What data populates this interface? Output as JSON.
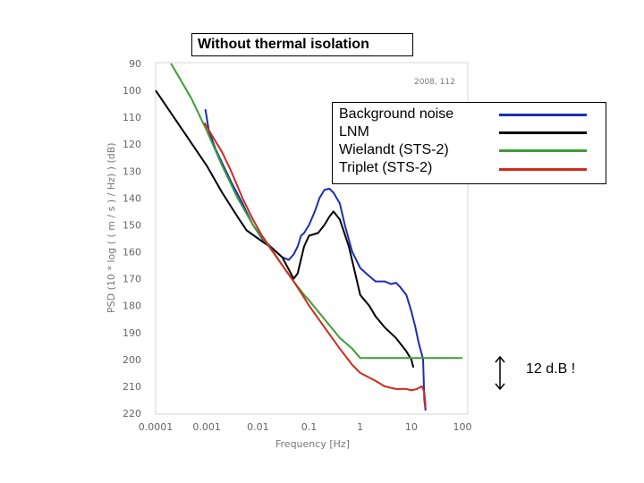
{
  "title": "Without thermal isolation",
  "annotation": "12 d.B !",
  "chart_data": {
    "type": "line",
    "stamp": "2008, 112",
    "xlabel": "Frequency   [Hz]",
    "ylabel": "PSD (10 * log ( ( m / s ) / Hz) )  (dB)",
    "xscale": "log",
    "xlim": [
      0.0001,
      100
    ],
    "ylim": [
      90,
      220
    ],
    "y_inverted": true,
    "x_ticks": [
      "0.0001",
      "0.001",
      "0.01",
      "0.1",
      "1",
      "10",
      "100"
    ],
    "y_ticks": [
      "90",
      "100",
      "110",
      "120",
      "130",
      "140",
      "150",
      "160",
      "170",
      "180",
      "190",
      "200",
      "210",
      "220"
    ],
    "legend_position": "top-right",
    "series": [
      {
        "name": "Background noise",
        "color": "#1a2fb5",
        "points": [
          [
            0.00094,
            107
          ],
          [
            0.0011,
            115
          ],
          [
            0.0015,
            122
          ],
          [
            0.002,
            127
          ],
          [
            0.003,
            134
          ],
          [
            0.005,
            142
          ],
          [
            0.008,
            150
          ],
          [
            0.012,
            155
          ],
          [
            0.02,
            159
          ],
          [
            0.03,
            162
          ],
          [
            0.04,
            163
          ],
          [
            0.05,
            161
          ],
          [
            0.06,
            158
          ],
          [
            0.07,
            154
          ],
          [
            0.08,
            153
          ],
          [
            0.1,
            150
          ],
          [
            0.13,
            145
          ],
          [
            0.16,
            140
          ],
          [
            0.2,
            137
          ],
          [
            0.25,
            136.5
          ],
          [
            0.3,
            138
          ],
          [
            0.4,
            142
          ],
          [
            0.5,
            150
          ],
          [
            0.7,
            160
          ],
          [
            1,
            166
          ],
          [
            1.5,
            169
          ],
          [
            2,
            171
          ],
          [
            3,
            171
          ],
          [
            4,
            172
          ],
          [
            5,
            171.5
          ],
          [
            6,
            173
          ],
          [
            8,
            176
          ],
          [
            10,
            182
          ],
          [
            12,
            188
          ],
          [
            14,
            194
          ],
          [
            16,
            198
          ],
          [
            17,
            200
          ],
          [
            18,
            215
          ],
          [
            19,
            219
          ]
        ]
      },
      {
        "name": "LNM",
        "color": "#000000",
        "points": [
          [
            0.0001,
            100
          ],
          [
            0.001,
            128
          ],
          [
            0.002,
            138
          ],
          [
            0.004,
            147
          ],
          [
            0.006,
            152
          ],
          [
            0.01,
            155
          ],
          [
            0.02,
            159
          ],
          [
            0.03,
            162
          ],
          [
            0.05,
            170
          ],
          [
            0.06,
            168
          ],
          [
            0.08,
            158
          ],
          [
            0.1,
            154
          ],
          [
            0.15,
            153
          ],
          [
            0.2,
            150
          ],
          [
            0.25,
            147
          ],
          [
            0.3,
            145
          ],
          [
            0.4,
            148
          ],
          [
            0.6,
            158
          ],
          [
            0.8,
            168
          ],
          [
            1,
            176
          ],
          [
            1.5,
            180
          ],
          [
            2,
            184
          ],
          [
            3,
            188
          ],
          [
            5,
            192
          ],
          [
            8,
            197
          ],
          [
            10,
            200
          ],
          [
            11,
            203
          ]
        ]
      },
      {
        "name": "Wielandt (STS-2)",
        "color": "#3aa033",
        "points": [
          [
            0.0002,
            90
          ],
          [
            0.0005,
            103
          ],
          [
            0.001,
            115
          ],
          [
            0.002,
            128
          ],
          [
            0.004,
            140
          ],
          [
            0.008,
            150
          ],
          [
            0.015,
            157
          ],
          [
            0.03,
            165
          ],
          [
            0.05,
            171
          ],
          [
            0.08,
            176
          ],
          [
            0.1,
            178
          ],
          [
            0.2,
            185
          ],
          [
            0.4,
            192
          ],
          [
            0.7,
            196
          ],
          [
            1,
            199.5
          ],
          [
            2,
            199.5
          ],
          [
            10,
            199.5
          ],
          [
            100,
            199.5
          ]
        ]
      },
      {
        "name": "Triplet (STS-2)",
        "color": "#d22a1a",
        "points": [
          [
            0.0009,
            112
          ],
          [
            0.0012,
            116
          ],
          [
            0.002,
            123
          ],
          [
            0.003,
            130
          ],
          [
            0.005,
            140
          ],
          [
            0.008,
            148
          ],
          [
            0.012,
            154
          ],
          [
            0.02,
            160
          ],
          [
            0.03,
            165
          ],
          [
            0.05,
            171
          ],
          [
            0.08,
            177
          ],
          [
            0.1,
            180
          ],
          [
            0.2,
            188
          ],
          [
            0.4,
            196
          ],
          [
            0.7,
            202
          ],
          [
            1,
            205
          ],
          [
            2,
            208
          ],
          [
            3,
            210
          ],
          [
            5,
            211
          ],
          [
            8,
            211
          ],
          [
            10,
            211.5
          ],
          [
            13,
            211
          ],
          [
            16,
            210
          ],
          [
            18,
            212
          ],
          [
            19,
            218
          ]
        ]
      }
    ]
  }
}
